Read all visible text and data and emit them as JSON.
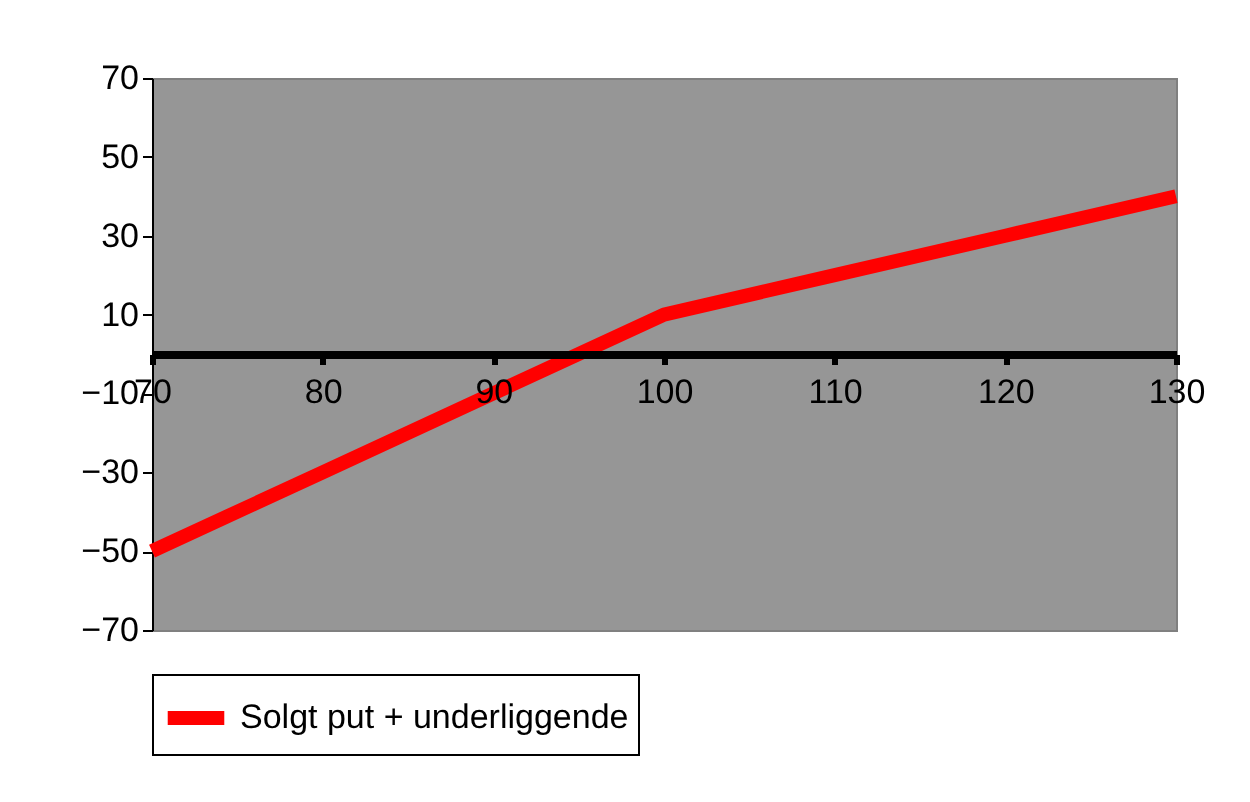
{
  "chart_data": {
    "type": "line",
    "x": [
      70,
      80,
      90,
      100,
      110,
      120,
      130
    ],
    "series": [
      {
        "name": "Solgt put + underliggende",
        "color": "#ff0000",
        "values": [
          -50,
          -30,
          -10,
          10,
          20,
          30,
          40
        ]
      }
    ],
    "xlim": [
      70,
      130
    ],
    "xticks": [
      70,
      80,
      90,
      100,
      110,
      120,
      130
    ],
    "ylim": [
      -70,
      70
    ],
    "yticks": [
      -70,
      -50,
      -30,
      -10,
      10,
      30,
      50,
      70
    ],
    "grid": false,
    "legend": "bottom",
    "marker": "none",
    "line_style": "solid"
  }
}
